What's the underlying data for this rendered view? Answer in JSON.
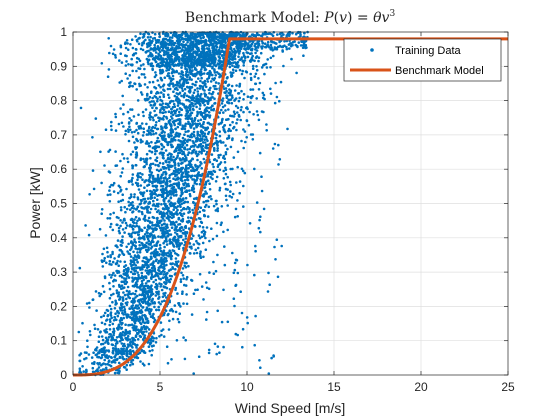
{
  "chart_data": {
    "type": "scatter",
    "title": "Benchmark Model: P(v) = θv³",
    "title_parts": {
      "prefix": "Benchmark Model: ",
      "func": "P",
      "lparen": "(",
      "var": "v",
      "rparen": ")",
      "equals": " = ",
      "theta": "θ",
      "var2": "v",
      "exponent": "3"
    },
    "xlabel": "Wind Speed [m/s]",
    "ylabel": "Power [kW]",
    "xlim": [
      0,
      25
    ],
    "ylim": [
      0,
      1
    ],
    "xticks": [
      0,
      5,
      10,
      15,
      20,
      25
    ],
    "yticks": [
      0,
      0.1,
      0.2,
      0.3,
      0.4,
      0.5,
      0.6,
      0.7,
      0.8,
      0.9,
      1
    ],
    "grid": true,
    "legend_position": "top-right",
    "series": [
      {
        "name": "Training Data",
        "kind": "scatter",
        "color": "#0072BD",
        "point_count_estimate": 12000,
        "distribution": {
          "description_points": [
            {
              "x": 2,
              "y_range": [
                0,
                0.1
              ]
            },
            {
              "x": 3,
              "y_range": [
                0,
                0.35
              ]
            },
            {
              "x": 4,
              "y_range": [
                0,
                0.6
              ]
            },
            {
              "x": 5,
              "y_range": [
                0.02,
                0.85
              ]
            },
            {
              "x": 6,
              "y_range": [
                0.1,
                1
              ]
            },
            {
              "x": 7,
              "y_range": [
                0.25,
                1
              ]
            },
            {
              "x": 8,
              "y_range": [
                0.4,
                1
              ]
            },
            {
              "x": 9,
              "y_range": [
                0.55,
                1
              ]
            },
            {
              "x": 10,
              "y_range": [
                0.7,
                1
              ]
            },
            {
              "x": 12,
              "y_range": [
                0.9,
                1
              ]
            },
            {
              "x": 13,
              "y_range": [
                0.95,
                1
              ]
            }
          ]
        }
      },
      {
        "name": "Benchmark Model",
        "kind": "line",
        "color": "#D95319",
        "theta": 0.00135,
        "cap": 0.98,
        "x": [
          0,
          1,
          2,
          3,
          4,
          5,
          6,
          7,
          8,
          8.93,
          10,
          15,
          20,
          25
        ],
        "y": [
          0,
          0.00135,
          0.0108,
          0.0365,
          0.0864,
          0.169,
          0.292,
          0.463,
          0.691,
          0.98,
          0.98,
          0.98,
          0.98,
          0.98
        ]
      }
    ]
  },
  "colors": {
    "scatter": "#0072BD",
    "model": "#D95319",
    "axes": "#262626",
    "grid": "#DFDFDF"
  }
}
